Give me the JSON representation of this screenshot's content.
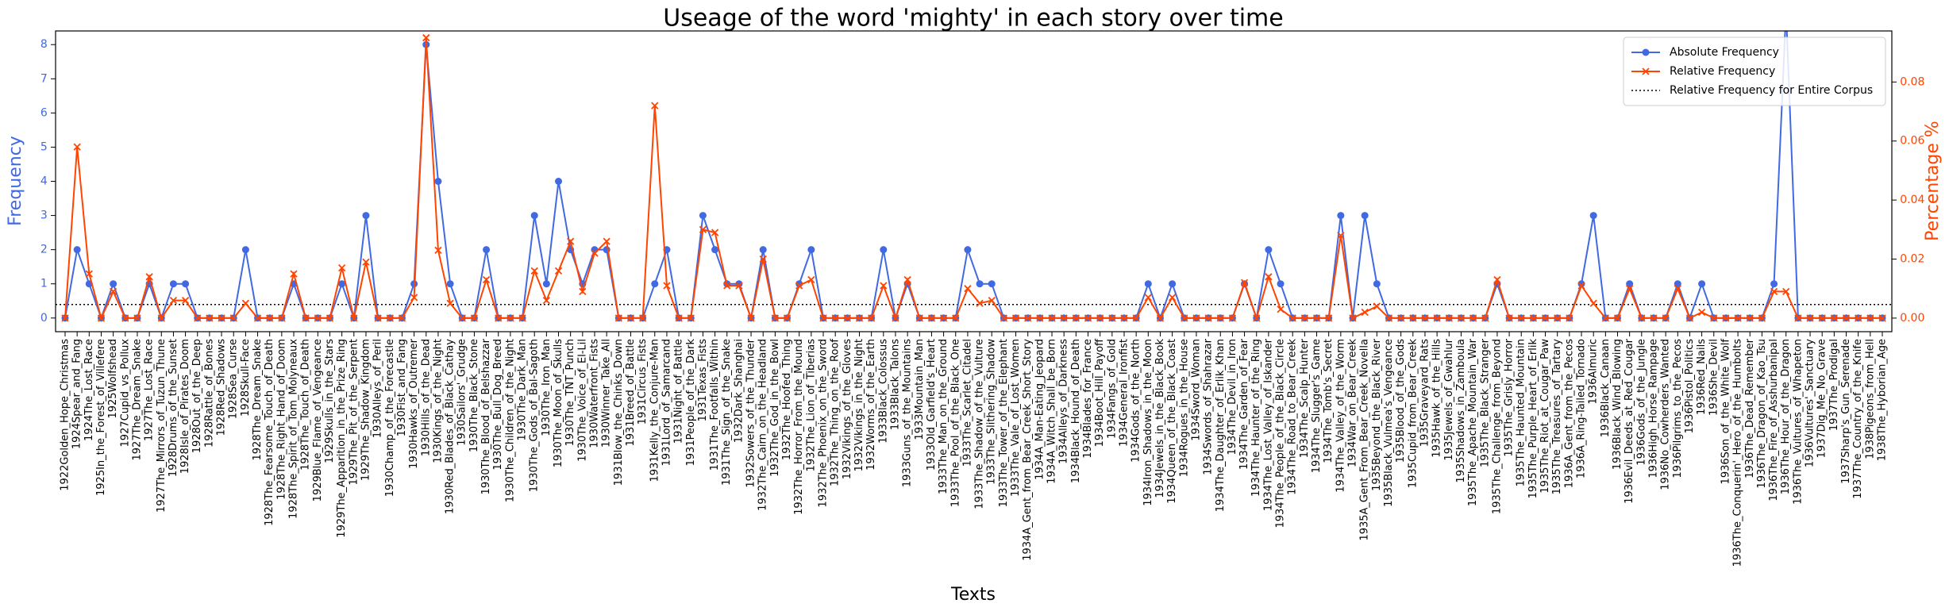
{
  "chart_data": {
    "type": "line",
    "title": "Useage of the word 'mighty' in each story over time",
    "xlabel": "Texts",
    "ylabel": "Frequency",
    "y2label": "Percentage %",
    "legend": "upper right",
    "categories": [
      "1922Golden_Hope_Christmas",
      "1924Spear_and_Fang",
      "1924The_Lost_Race",
      "1925In_the_Forest_of_Villefere",
      "1925Wolfshead",
      "1927Cupid_vs_Pollux",
      "1927The_Dream_Snake",
      "1927The_Lost_Race",
      "1927The_Mirrors_of_Tuzun_Thune",
      "1928Drums_of_the_Sunset",
      "1928Isle_of_Pirates_Doom",
      "1928Out_of_the_Deep",
      "1928Rattle_of_Bones",
      "1928Red_Shadows",
      "1928Sea_Curse",
      "1928Skull-Face",
      "1928The_Dream_Snake",
      "1928The_Fearsome_Touch_of_Death",
      "1928The_Right_Hand_of_Doom",
      "1928The_Spirit_of_Tom_Molyneaux",
      "1928The_Touch_of_Death",
      "1929Blue_Flame_of_Vengeance",
      "1929Skulls_in_the_Stars",
      "1929The_Apparition_in_the_Prize_Ring",
      "1929The_Pit_of_the_Serpent",
      "1929The_Shadow_Kingdom",
      "1930Alleys_of_Peril",
      "1930Champ_of_the_Forecastle",
      "1930Fist_and_Fang",
      "1930Hawks_of_Outremer",
      "1930Hills_of_the_Dead",
      "1930Kings_of_the_Night",
      "1930Red_Blades_of_Black_Cathay",
      "1930Sailors'_Grudge",
      "1930The_Black_Stone",
      "1930The_Blood_of_Belshazzar",
      "1930The_Bull_Dog_Breed",
      "1930The_Children_of_the_Night",
      "1930The_Dark_Man",
      "1930The_Gods_of_Bal-Sagoth",
      "1930The_Iron_Man",
      "1930The_Moon_of_Skulls",
      "1930The_TNT_Punch",
      "1930The_Voice_of_El-Lil",
      "1930Waterfront_Fists",
      "1930Winner_Take_All",
      "1931Blow_the_Chinks_Down",
      "1931Breed_of_Battle",
      "1931Circus_Fists",
      "1931Kelly_the_Conjure-Man",
      "1931Lord_of_Samarcand",
      "1931Night_of_Battle",
      "1931People_of_the_Dark",
      "1931Texas_Fists",
      "1931The_Footfalls_Within",
      "1931The_Sign_of_the_Snake",
      "1932Dark_Shanghai",
      "1932Sowers_of_the_Thunder",
      "1932The_Cairn_on_the_Headland",
      "1932The_God_in_the_Bowl",
      "1932The_Hoofed_Thing",
      "1932The_Horror_From_the_Mound",
      "1932The_Lion_of_Tiberias",
      "1932The_Phoenix_on_the_Sword",
      "1932The_Thing_on_the_Roof",
      "1932Vikings_of_the_Gloves",
      "1932Vikings_in_the_Night",
      "1932Worms_of_the_Earth",
      "1933Black_Colossus",
      "1933Black_Talons",
      "1933Guns_of_the_Mountains",
      "1933Mountain_Man",
      "1933Old_Garfield's_Heart",
      "1933The_Man_on_the_Ground",
      "1933The_Pool_of_the_Black_One",
      "1933The_Scarlet_Citadel",
      "1933The_Shadow_of_the_Vulture",
      "1933The_Slithering_Shadow",
      "1933The_Tower_of_the_Elephant",
      "1933The_Vale_of_Lost_Women",
      "1934A_Gent_from_Bear_Creek_Short_Story",
      "1934A_Man-Eating_Jeopard",
      "1934A_Witch_Shall_be_Born",
      "1934Alleys_of_Darkness",
      "1934Black_Hound_of_Death",
      "1934Blades_for_France",
      "1934Boot_Hill_Payoff",
      "1934Fangs_of_Gold",
      "1934General_Ironfist",
      "1934Gods_of_the_North",
      "1934Iron_Shadows_in_the_Moon",
      "1934Jewels_in_the_Black_Book",
      "1934Queen_of_the_Black_Coast",
      "1934Rogues_in_the_House",
      "1934Sword_Woman",
      "1934Swords_of_Shahrazar",
      "1934The_Daughter_of_Erlik_Khan",
      "1934The_Devil_in_Iron",
      "1934The_Garden_of_Fear",
      "1934The_Haunter_of_the_Ring",
      "1934The_Lost_Valley_of_Iskander",
      "1934The_People_of_the_Black_Circle",
      "1934The_Road_to_Bear_Creek",
      "1934The_Scalp_Hunter",
      "1934The_Slugger's_Game",
      "1934The_Tomb's_Secret",
      "1934The_Valley_of_the_Worm",
      "1934War_on_Bear_Creek",
      "1935A_Gent_From_Bear_Creek_Novella",
      "1935Beyond_the_Black_River",
      "1935Black_Vulmea's_Vengeance",
      "1935Blood_of_the_Gods",
      "1935Cupid_from_Bear_Creek",
      "1935Graveyard_Rats",
      "1935Hawk_of_the_Hills",
      "1935Jewels_of_Gwahlur",
      "1935Shadows_in_Zamboula",
      "1935The_Apache_Mountain_War",
      "1935The_Black_Stranger",
      "1935The_Challenge_from_Beyond",
      "1935The_Grisly_Horror",
      "1935The_Haunted_Mountain",
      "1935The_Purple_Heart_of_Erlik",
      "1935The_Riot_at_Cougar_Paw",
      "1935The_Treasures_of_Tartary",
      "1936A_Gent_from_the_Pecos",
      "1936A_Ring-Tailed_Tornado",
      "1936Almuric",
      "1936Black_Canaan",
      "1936Black_Wind_Blowing",
      "1936Evil_Deeds_at_Red_Cougar",
      "1936Gods_of_the_Jungle",
      "1936High_Horse_Rampage",
      "1936No_Cowherders_Wanted",
      "1936Pilgrims_to_the_Pecos",
      "1936Pistol_Politics",
      "1936Red_Nails",
      "1936She_Devil",
      "1936Son_of_the_White_Wolf",
      "1936The_Conquerin'_Hero_of_the_Humbolts",
      "1936The_Dead_Remember",
      "1936The_Dragon_of_Kao_Tsu",
      "1936The_Fire_of_Asshurbanipal",
      "1936The_Hour_of_the_Dragon",
      "1936The_Vultures_of_Whapeton",
      "1936Vultures'_Sanctuary",
      "1937Dig_Me_No_Grave",
      "1937The_Prodigal",
      "1937Sharp's_Gun_Serenade",
      "1937The_Country_of_the_Knife",
      "1938Pigeons_from_Hell",
      "1938The_Hyborian_Age"
    ],
    "series": [
      {
        "name": "Absolute Frequency",
        "color": "#4169e1",
        "marker": "o",
        "axis": "y",
        "values": [
          0,
          2,
          1,
          0,
          1,
          0,
          0,
          1,
          0,
          1,
          1,
          0,
          0,
          0,
          0,
          2,
          0,
          0,
          0,
          1,
          0,
          0,
          0,
          1,
          0,
          3,
          0,
          0,
          0,
          1,
          8,
          4,
          1,
          0,
          0,
          2,
          0,
          0,
          0,
          3,
          1,
          4,
          2,
          1,
          2,
          2,
          0,
          0,
          0,
          1,
          2,
          0,
          0,
          3,
          2,
          1,
          1,
          0,
          2,
          0,
          0,
          1,
          2,
          0,
          0,
          0,
          0,
          0,
          2,
          0,
          1,
          0,
          0,
          0,
          0,
          2,
          1,
          1,
          0,
          0,
          0,
          0,
          0,
          0,
          0,
          0,
          0,
          0,
          0,
          0,
          1,
          0,
          1,
          0,
          0,
          0,
          0,
          0,
          1,
          0,
          2,
          1,
          0,
          0,
          0,
          0,
          3,
          0,
          3,
          1,
          0,
          0,
          0,
          0,
          0,
          0,
          0,
          0,
          0,
          1,
          0,
          0,
          0,
          0,
          0,
          0,
          1,
          3,
          0,
          0,
          1,
          0,
          0,
          0,
          1,
          0,
          1,
          0,
          0,
          0,
          0,
          0,
          1,
          9,
          0,
          0,
          0,
          0,
          0,
          0,
          0,
          0
        ]
      },
      {
        "name": "Relative Frequency",
        "color": "#ff4500",
        "marker": "x",
        "axis": "y2",
        "values": [
          0,
          0.058,
          0.015,
          0,
          0.009,
          0,
          0,
          0.014,
          0,
          0.006,
          0.006,
          0,
          0,
          0,
          0,
          0.005,
          0,
          0,
          0,
          0.015,
          0,
          0,
          0,
          0.017,
          0,
          0.019,
          0,
          0,
          0,
          0.007,
          0.095,
          0.023,
          0.005,
          0,
          0,
          0.013,
          0,
          0,
          0,
          0.016,
          0.006,
          0.016,
          0.026,
          0.009,
          0.022,
          0.026,
          0,
          0,
          0,
          0.072,
          0.011,
          0,
          0,
          0.03,
          0.029,
          0.011,
          0.011,
          0,
          0.02,
          0,
          0,
          0.011,
          0.013,
          0,
          0,
          0,
          0,
          0,
          0.011,
          0,
          0.013,
          0,
          0,
          0,
          0,
          0.01,
          0.005,
          0.006,
          0,
          0,
          0,
          0,
          0,
          0,
          0,
          0,
          0,
          0,
          0,
          0,
          0.007,
          0,
          0.007,
          0,
          0,
          0,
          0,
          0,
          0.012,
          0,
          0.014,
          0.003,
          0,
          0,
          0,
          0,
          0.028,
          0,
          0.002,
          0.004,
          0,
          0,
          0,
          0,
          0,
          0,
          0,
          0,
          0,
          0.013,
          0,
          0,
          0,
          0,
          0,
          0,
          0.011,
          0.005,
          0,
          0,
          0.01,
          0,
          0,
          0,
          0.01,
          0,
          0.002,
          0,
          0,
          0,
          0,
          0,
          0.009,
          0.009,
          0,
          0,
          0,
          0,
          0,
          0,
          0,
          0
        ]
      }
    ],
    "reference_lines": [
      {
        "name": "Relative Frequency for Entire Corpus",
        "value": 0.0046,
        "axis": "y2",
        "color": "#000000",
        "style": "dotted"
      }
    ],
    "ylim": [
      -0.4,
      8.4
    ],
    "yticks": [
      0,
      1,
      2,
      3,
      4,
      5,
      6,
      7,
      8
    ],
    "ytick_color": "#4169e1",
    "y2lim": [
      -0.0046,
      0.0973
    ],
    "y2ticks": [
      {
        "value": 0,
        "label": "0.00"
      },
      0.02,
      0.04,
      0.06,
      0.08
    ],
    "y2tick_color": "#ff4500"
  }
}
